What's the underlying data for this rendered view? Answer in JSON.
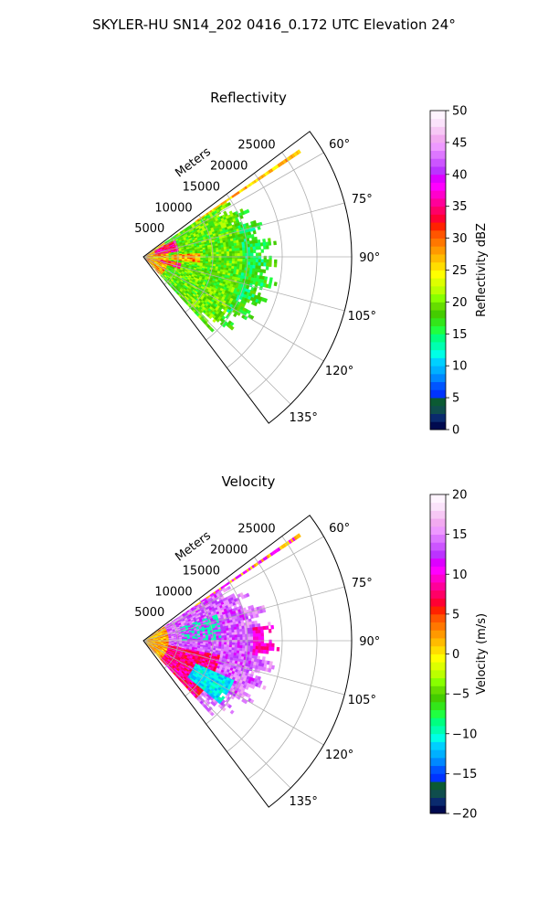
{
  "figure": {
    "title": "SKYLER-HU  SN14_202  0416_0.172 UTC Elevation 24°"
  },
  "chart_data": [
    {
      "type": "heatmap",
      "subtype": "polar-sector-ppi",
      "title": "Reflectivity",
      "radial_label": "Meters",
      "radial_ticks": [
        5000,
        10000,
        15000,
        20000,
        25000
      ],
      "radial_tick_labels": [
        "5000",
        "10000",
        "15000",
        "20000",
        "25000"
      ],
      "rlim": [
        0,
        30000
      ],
      "theta_ticks_deg": [
        60,
        75,
        90,
        105,
        120,
        135
      ],
      "theta_tick_labels": [
        "60°",
        "75°",
        "90°",
        "105°",
        "120°",
        "135°"
      ],
      "theta_range_deg": [
        53,
        143
      ],
      "grid": true,
      "echo_extent": {
        "azimuth_deg": [
          56,
          136
        ],
        "range_m": [
          0,
          19000
        ],
        "beam_azimuth_deg": 56,
        "beam_range_m": [
          9000,
          27000
        ]
      },
      "colorbar": {
        "label": "Reflectivity dBZ",
        "min": 0,
        "max": 50,
        "ticks": [
          0,
          5,
          10,
          15,
          20,
          25,
          30,
          35,
          40,
          45,
          50
        ],
        "tick_labels": [
          "0",
          "5",
          "10",
          "15",
          "20",
          "25",
          "30",
          "35",
          "40",
          "45",
          "50"
        ],
        "colors": [
          "#000a4f",
          "#0a2a6e",
          "#0f4d4d",
          "#0b5a33",
          "#0033ff",
          "#0055ff",
          "#0088ff",
          "#00b0ff",
          "#00d0ff",
          "#00ffe6",
          "#00ffb0",
          "#00ff80",
          "#20ff40",
          "#33e61a",
          "#44cc00",
          "#66dd00",
          "#88ff00",
          "#bbff00",
          "#ddff00",
          "#ffff00",
          "#ffdd00",
          "#ffbb00",
          "#ff9900",
          "#ff7700",
          "#ff5500",
          "#ff2200",
          "#ff0033",
          "#ff0066",
          "#ff0099",
          "#ff00cc",
          "#ff00ff",
          "#dd00ff",
          "#bb33ff",
          "#cc55ff",
          "#dd77ff",
          "#ee99ff",
          "#f2aaf0",
          "#f7c8f5",
          "#fbe3fb",
          "#fff4ff"
        ]
      }
    },
    {
      "type": "heatmap",
      "subtype": "polar-sector-ppi",
      "title": "Velocity",
      "radial_label": "Meters",
      "radial_ticks": [
        5000,
        10000,
        15000,
        20000,
        25000
      ],
      "radial_tick_labels": [
        "5000",
        "10000",
        "15000",
        "20000",
        "25000"
      ],
      "rlim": [
        0,
        30000
      ],
      "theta_ticks_deg": [
        60,
        75,
        90,
        105,
        120,
        135
      ],
      "theta_tick_labels": [
        "60°",
        "75°",
        "90°",
        "105°",
        "120°",
        "135°"
      ],
      "theta_range_deg": [
        53,
        143
      ],
      "grid": true,
      "echo_extent": {
        "azimuth_deg": [
          56,
          136
        ],
        "range_m": [
          0,
          19000
        ],
        "beam_azimuth_deg": 56,
        "beam_range_m": [
          9000,
          27000
        ]
      },
      "colorbar": {
        "label": "Velocity (m/s)",
        "min": -20,
        "max": 20,
        "ticks": [
          -20,
          -15,
          -10,
          -5,
          0,
          5,
          10,
          15,
          20
        ],
        "tick_labels": [
          "−20",
          "−15",
          "−10",
          "−5",
          "0",
          "5",
          "10",
          "15",
          "20"
        ],
        "colors": [
          "#000a4f",
          "#0a2a6e",
          "#0f4d4d",
          "#0b5a33",
          "#0033ff",
          "#0055ff",
          "#0088ff",
          "#00b0ff",
          "#00d0ff",
          "#00ffe6",
          "#00ffb0",
          "#00ff80",
          "#20ff40",
          "#33e61a",
          "#44cc00",
          "#66dd00",
          "#88ff00",
          "#bbff00",
          "#ddff00",
          "#ffff00",
          "#ffdd00",
          "#ffbb00",
          "#ff9900",
          "#ff7700",
          "#ff5500",
          "#ff2200",
          "#ff0033",
          "#ff0066",
          "#ff0099",
          "#ff00cc",
          "#ff00ff",
          "#dd00ff",
          "#bb33ff",
          "#cc55ff",
          "#dd77ff",
          "#ee99ff",
          "#f2aaf0",
          "#f7c8f5",
          "#fbe3fb",
          "#fff4ff"
        ]
      }
    }
  ]
}
